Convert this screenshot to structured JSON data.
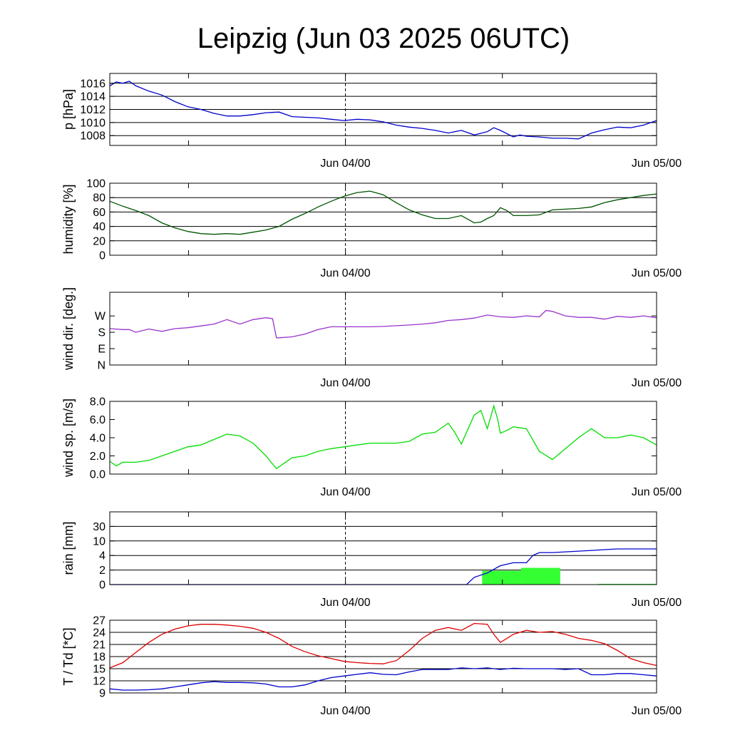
{
  "title": "Leipzig (Jun 03 2025 06UTC)",
  "x_tick_labels": [
    "Jun 04/00",
    "Jun 05/00"
  ],
  "chart_data": [
    {
      "id": "pressure",
      "type": "line",
      "ylabel": "p [hPa]",
      "ylim": [
        1006.5,
        1017.5
      ],
      "yticks": [
        1008,
        1010,
        1012,
        1014,
        1016
      ],
      "ytick_labels": [
        "1008",
        "1010",
        "1012",
        "1014",
        "1016"
      ],
      "grid": true,
      "xlim": [
        0,
        42
      ],
      "series": [
        {
          "color": "#0000cc",
          "x": [
            0,
            0.5,
            1,
            1.5,
            2,
            3,
            4,
            5,
            6,
            7,
            8,
            9,
            10,
            11,
            12,
            13,
            14,
            15,
            16,
            17,
            18,
            19,
            20,
            21,
            22,
            23,
            24,
            25,
            26,
            27,
            28,
            29,
            29.5,
            30,
            31,
            31.5,
            32,
            33,
            34,
            35,
            36,
            37,
            38,
            39,
            40,
            41,
            42
          ],
          "y": [
            1015.6,
            1016.2,
            1016.0,
            1016.3,
            1015.6,
            1014.8,
            1014.2,
            1013.2,
            1012.4,
            1012.0,
            1011.4,
            1011.0,
            1011.0,
            1011.2,
            1011.5,
            1011.6,
            1010.9,
            1010.8,
            1010.7,
            1010.5,
            1010.3,
            1010.5,
            1010.4,
            1010.1,
            1009.6,
            1009.3,
            1009.1,
            1008.8,
            1008.4,
            1008.8,
            1008.1,
            1008.6,
            1009.2,
            1008.8,
            1007.8,
            1008.1,
            1007.9,
            1007.8,
            1007.6,
            1007.6,
            1007.5,
            1008.4,
            1008.9,
            1009.3,
            1009.2,
            1009.6,
            1010.3
          ]
        }
      ]
    },
    {
      "id": "humidity",
      "type": "line",
      "ylabel": "humidity [%]",
      "ylim": [
        0,
        100
      ],
      "yticks": [
        0,
        20,
        40,
        60,
        80,
        100
      ],
      "ytick_labels": [
        "0",
        "20",
        "40",
        "60",
        "80",
        "100"
      ],
      "grid": true,
      "xlim": [
        0,
        42
      ],
      "series": [
        {
          "color": "#005500",
          "x": [
            0,
            1,
            2,
            3,
            4,
            5,
            6,
            7,
            8,
            9,
            10,
            11,
            12,
            13,
            14,
            15,
            16,
            17,
            18,
            19,
            20,
            21,
            22,
            23,
            24,
            25,
            26,
            27,
            28,
            28.5,
            29,
            29.5,
            30,
            30.5,
            31,
            32,
            33,
            34,
            35,
            36,
            37,
            38,
            39,
            40,
            41,
            42
          ],
          "y": [
            75,
            68,
            62,
            55,
            45,
            38,
            33,
            30,
            29,
            30,
            29,
            32,
            35,
            40,
            50,
            58,
            67,
            75,
            82,
            87,
            89,
            84,
            73,
            63,
            56,
            51,
            51,
            55,
            45,
            46,
            51,
            55,
            66,
            62,
            55,
            55,
            56,
            63,
            64,
            65,
            67,
            73,
            77,
            80,
            83,
            85
          ]
        }
      ]
    },
    {
      "id": "wind-direction",
      "type": "line",
      "ylabel": "wind dir. [deg.]",
      "ylim": [
        0,
        400
      ],
      "yticks": [
        0,
        90,
        180,
        270
      ],
      "ytick_labels": [
        "N",
        "E",
        "S",
        "W"
      ],
      "grid": false,
      "xlim": [
        0,
        42
      ],
      "series": [
        {
          "color": "#9933cc",
          "x": [
            0,
            1,
            1.5,
            2,
            3,
            4,
            5,
            6,
            7,
            8,
            9,
            10,
            11,
            12,
            12.5,
            12.8,
            13,
            14,
            15,
            16,
            17,
            18,
            19,
            20,
            21,
            22,
            23,
            24,
            25,
            26,
            27,
            28,
            29,
            30,
            31,
            32,
            33,
            33.5,
            34,
            35,
            36,
            37,
            38,
            39,
            40,
            41,
            42
          ],
          "y": [
            200,
            195,
            195,
            180,
            198,
            185,
            200,
            205,
            215,
            225,
            250,
            225,
            250,
            260,
            255,
            150,
            150,
            155,
            170,
            195,
            210,
            210,
            210,
            210,
            212,
            216,
            220,
            225,
            232,
            245,
            250,
            258,
            275,
            265,
            262,
            270,
            265,
            300,
            295,
            270,
            262,
            262,
            252,
            268,
            262,
            270,
            260
          ]
        }
      ]
    },
    {
      "id": "wind-speed",
      "type": "line",
      "ylabel": "wind sp. [m/s]",
      "ylim": [
        0,
        8
      ],
      "yticks": [
        0,
        2,
        4,
        6,
        8
      ],
      "ytick_labels": [
        "0.0",
        "2.0",
        "4.0",
        "6.0",
        "8.0"
      ],
      "grid": false,
      "xlim": [
        0,
        42
      ],
      "series": [
        {
          "color": "#00dd00",
          "x": [
            0,
            0.5,
            1,
            2,
            3,
            4,
            5,
            6,
            7,
            8,
            9,
            10,
            11,
            12,
            12.8,
            13,
            14,
            15,
            16,
            17,
            18,
            19,
            20,
            21,
            22,
            23,
            24,
            25,
            26,
            26.5,
            27,
            28,
            28.5,
            29,
            29.5,
            29.8,
            30,
            30.5,
            31,
            32,
            33,
            34,
            35,
            36,
            37,
            38,
            39,
            40,
            41,
            42
          ],
          "y": [
            1.4,
            0.9,
            1.3,
            1.3,
            1.5,
            2.0,
            2.5,
            3.0,
            3.2,
            3.8,
            4.4,
            4.2,
            3.4,
            2.0,
            0.6,
            0.8,
            1.8,
            2.0,
            2.5,
            2.8,
            3.0,
            3.2,
            3.4,
            3.4,
            3.4,
            3.6,
            4.4,
            4.6,
            5.6,
            4.6,
            3.3,
            6.5,
            7.0,
            5.0,
            7.5,
            6.0,
            4.5,
            4.8,
            5.2,
            5.0,
            2.5,
            1.6,
            2.8,
            4.0,
            5.0,
            4.0,
            4.0,
            4.3,
            4.0,
            3.2
          ]
        }
      ]
    },
    {
      "id": "rain",
      "type": "bar-line",
      "ylabel": "rain [mm]",
      "ylim": [
        0,
        5
      ],
      "yticks": [
        0,
        1,
        2,
        3,
        4,
        5
      ],
      "ytick_labels": [
        "0",
        "2",
        "4",
        "10",
        "30",
        ""
      ],
      "grid": true,
      "xlim": [
        0,
        42
      ],
      "bars": {
        "color": "#33ff33",
        "items": [
          {
            "x0": 28.6,
            "x1": 31.6,
            "value": 0.95
          },
          {
            "x0": 31.6,
            "x1": 34.6,
            "value": 1.15
          },
          {
            "x0": 37.5,
            "x1": 42.0,
            "value": 0.05
          }
        ]
      },
      "series": [
        {
          "color": "#0000cc",
          "x": [
            0,
            27.4,
            28,
            29,
            30,
            31,
            32,
            32.5,
            33,
            34,
            35,
            36,
            37,
            38,
            39,
            40,
            41,
            42
          ],
          "y": [
            0,
            0,
            0.5,
            0.8,
            1.3,
            1.5,
            1.5,
            2.0,
            2.2,
            2.2,
            2.25,
            2.3,
            2.35,
            2.4,
            2.45,
            2.45,
            2.45,
            2.45
          ]
        }
      ]
    },
    {
      "id": "temperature",
      "type": "line",
      "ylabel": "T / Td [*C]",
      "ylim": [
        9,
        27
      ],
      "yticks": [
        9,
        12,
        15,
        18,
        21,
        24,
        27
      ],
      "ytick_labels": [
        "9",
        "12",
        "15",
        "18",
        "21",
        "24",
        "27"
      ],
      "grid": true,
      "xlim": [
        0,
        42
      ],
      "series": [
        {
          "color": "#dd0000",
          "x": [
            0,
            1,
            2,
            3,
            4,
            5,
            6,
            7,
            8,
            9,
            10,
            11,
            12,
            13,
            14,
            15,
            16,
            17,
            18,
            19,
            20,
            21,
            22,
            23,
            24,
            25,
            26,
            27,
            28,
            29,
            29.5,
            30,
            31,
            32,
            33,
            34,
            35,
            36,
            37,
            38,
            39,
            40,
            41,
            42
          ],
          "y": [
            15.2,
            16.5,
            19.0,
            21.5,
            23.5,
            24.8,
            25.6,
            26.0,
            26.0,
            25.8,
            25.5,
            25.0,
            24.0,
            22.5,
            20.5,
            19.2,
            18.2,
            17.5,
            16.8,
            16.5,
            16.3,
            16.2,
            17.0,
            19.5,
            22.5,
            24.5,
            25.2,
            24.5,
            26.2,
            26.0,
            23.5,
            21.5,
            23.5,
            24.5,
            24.0,
            24.2,
            23.5,
            22.5,
            22.0,
            21.2,
            19.5,
            17.5,
            16.5,
            15.8
          ]
        },
        {
          "color": "#0000cc",
          "x": [
            0,
            1,
            2,
            3,
            4,
            5,
            6,
            7,
            8,
            9,
            10,
            11,
            12,
            13,
            14,
            15,
            16,
            17,
            18,
            19,
            20,
            21,
            22,
            23,
            24,
            25,
            26,
            27,
            28,
            29,
            30,
            31,
            32,
            33,
            34,
            35,
            36,
            37,
            38,
            39,
            40,
            41,
            42
          ],
          "y": [
            10.0,
            9.7,
            9.7,
            9.8,
            10.0,
            10.5,
            11.0,
            11.5,
            11.8,
            11.6,
            11.6,
            11.5,
            11.2,
            10.5,
            10.5,
            11.0,
            12.0,
            12.8,
            13.2,
            13.6,
            14.0,
            13.6,
            13.5,
            14.2,
            14.8,
            14.8,
            14.8,
            15.2,
            15.0,
            15.2,
            14.8,
            15.1,
            15.0,
            15.0,
            15.0,
            14.8,
            15.0,
            13.5,
            13.5,
            13.8,
            13.8,
            13.5,
            13.2
          ]
        }
      ]
    }
  ]
}
